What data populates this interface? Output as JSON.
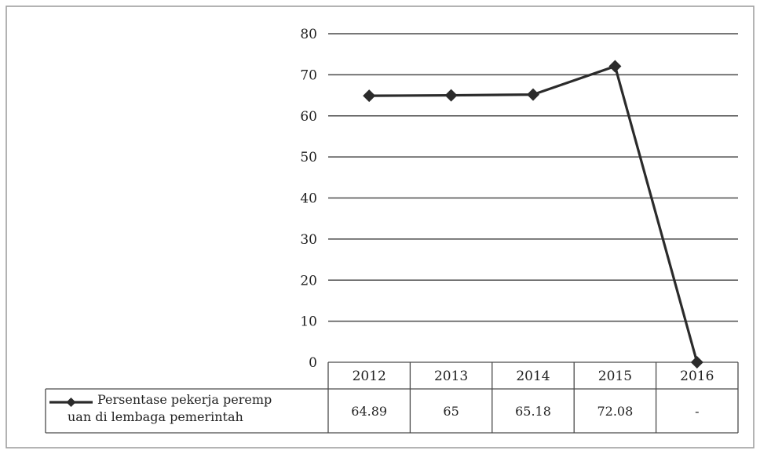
{
  "chart_data": {
    "type": "line",
    "title": "",
    "xlabel": "",
    "ylabel": "",
    "categories": [
      "2012",
      "2013",
      "2014",
      "2015",
      "2016"
    ],
    "series": [
      {
        "name": "Persentase pekerja perempuan di lembaga pemerintah",
        "name_lines": [
          "Persentase pekerja peremp",
          "uan di lembaga pemerintah"
        ],
        "values": [
          64.89,
          65,
          65.18,
          72.08,
          0
        ],
        "table_values": [
          "64.89",
          "65",
          "65.18",
          "72.08",
          "-"
        ],
        "color": "#2b2b2b"
      }
    ],
    "ylim": [
      0,
      80
    ],
    "yticks": [
      0,
      10,
      20,
      30,
      40,
      50,
      60,
      70,
      80
    ],
    "grid": true,
    "legend": "data-table-bottom-left"
  }
}
